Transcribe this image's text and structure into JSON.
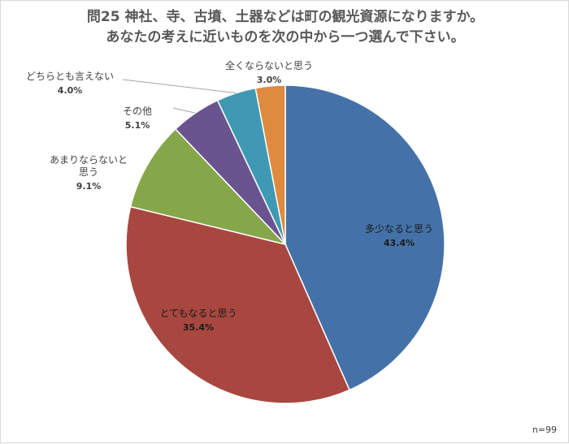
{
  "chart_data": {
    "type": "pie",
    "title": "問25 神社、寺、古墳、土器などは町の観光資源になりますか。\nあなたの考えに近いものを次の中から一つ選んで下さい。",
    "note": "n=99",
    "start_angle_deg": 0,
    "direction": "clockwise",
    "slices": [
      {
        "label": "多少なると思う",
        "value": 43.4,
        "value_label": "43.4%",
        "color": "#4472a8"
      },
      {
        "label": "とてもなると思う",
        "value": 35.4,
        "value_label": "35.4%",
        "color": "#a8473f"
      },
      {
        "label": "あまりならないと\n思う",
        "value": 9.1,
        "value_label": "9.1%",
        "color": "#86a64a"
      },
      {
        "label": "その他",
        "value": 5.1,
        "value_label": "5.1%",
        "color": "#6a5490"
      },
      {
        "label": "どちらとも言えない",
        "value": 4.0,
        "value_label": "4.0%",
        "color": "#3f99b3"
      },
      {
        "label": "全くならないと思う",
        "value": 3.0,
        "value_label": "3.0%",
        "color": "#de8a3f"
      }
    ]
  }
}
